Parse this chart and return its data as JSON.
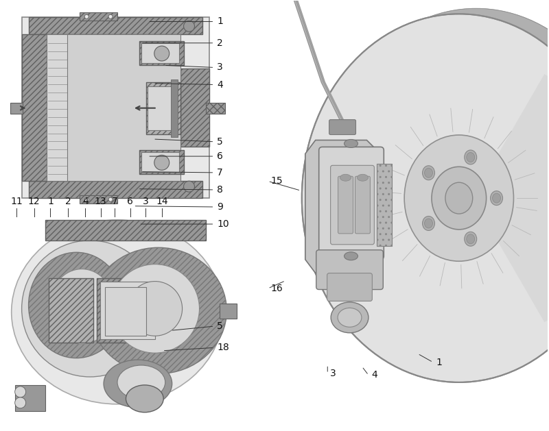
{
  "bg": "#ffffff",
  "fig_w": 8.0,
  "fig_h": 6.29,
  "lc": "#333333",
  "tc": "#111111",
  "fs": 10,
  "ann1": [
    [
      "1",
      [
        0.268,
        0.952
      ],
      [
        0.39,
        0.952
      ]
    ],
    [
      "2",
      [
        0.255,
        0.902
      ],
      [
        0.39,
        0.902
      ]
    ],
    [
      "3",
      [
        0.298,
        0.85
      ],
      [
        0.39,
        0.845
      ]
    ],
    [
      "4",
      [
        0.278,
        0.808
      ],
      [
        0.39,
        0.805
      ]
    ],
    [
      "5",
      [
        0.278,
        0.678
      ],
      [
        0.39,
        0.672
      ]
    ],
    [
      "6",
      [
        0.268,
        0.638
      ],
      [
        0.39,
        0.638
      ]
    ],
    [
      "7",
      [
        0.255,
        0.602
      ],
      [
        0.39,
        0.6
      ]
    ],
    [
      "8",
      [
        0.25,
        0.562
      ],
      [
        0.39,
        0.56
      ]
    ],
    [
      "9",
      [
        0.242,
        0.522
      ],
      [
        0.39,
        0.52
      ]
    ],
    [
      "10",
      [
        0.252,
        0.48
      ],
      [
        0.39,
        0.48
      ]
    ]
  ],
  "ann2_header": [
    [
      "11",
      0.028
    ],
    [
      "12",
      0.06
    ],
    [
      "1",
      0.09
    ],
    [
      "2",
      0.122
    ],
    [
      "4",
      0.154
    ],
    [
      "13",
      0.182
    ],
    [
      "7",
      0.208
    ],
    [
      "6",
      0.236
    ],
    [
      "3",
      0.264
    ],
    [
      "14",
      0.294
    ]
  ],
  "ann2_side": [
    [
      "5",
      [
        0.31,
        0.232
      ],
      [
        0.39,
        0.242
      ]
    ],
    [
      "18",
      [
        0.295,
        0.185
      ],
      [
        0.39,
        0.192
      ]
    ]
  ],
  "ann3": [
    [
      "15",
      [
        0.548,
        0.558
      ],
      [
        0.488,
        0.58
      ]
    ],
    [
      "16",
      [
        0.52,
        0.348
      ],
      [
        0.488,
        0.33
      ]
    ],
    [
      "3",
      [
        0.597,
        0.152
      ],
      [
        0.597,
        0.132
      ]
    ],
    [
      "4",
      [
        0.66,
        0.148
      ],
      [
        0.672,
        0.128
      ]
    ],
    [
      "1",
      [
        0.762,
        0.178
      ],
      [
        0.79,
        0.158
      ]
    ]
  ],
  "gray1": "#c8c8c8",
  "gray2": "#b0b0b0",
  "gray3": "#989898",
  "gray4": "#787878",
  "gray5": "#606060",
  "gray6": "#d8d8d8",
  "gray7": "#e8e8e8",
  "gray8": "#a8a8a8"
}
